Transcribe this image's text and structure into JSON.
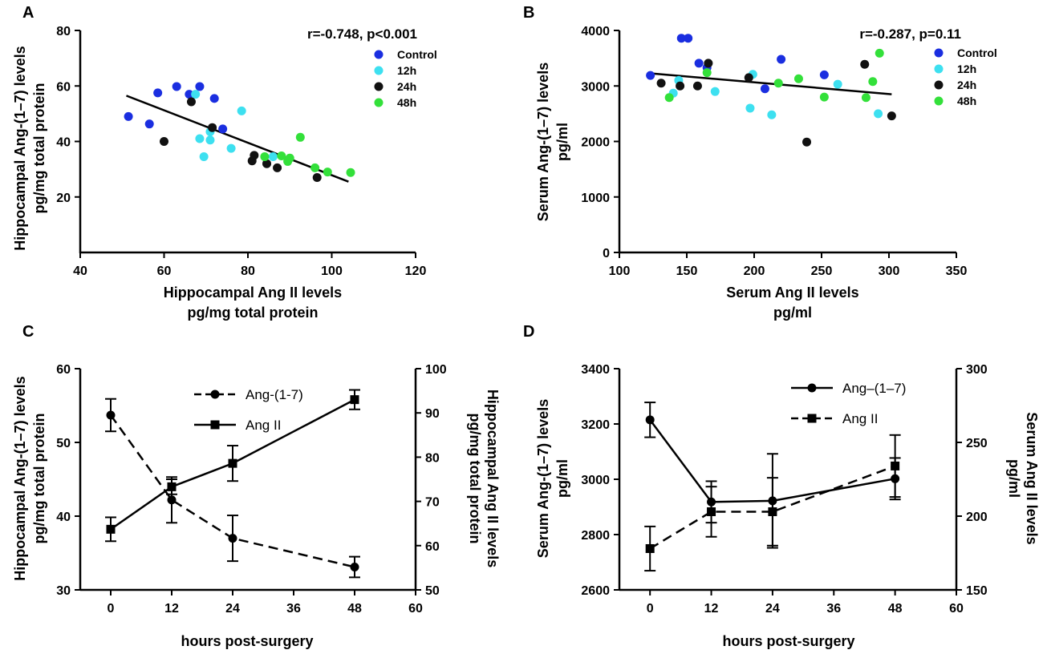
{
  "chart_data": [
    {
      "panel": "A",
      "type": "scatter",
      "xlabel": "Hippocampal Ang II levels",
      "xlabel2": "pg/mg total protein",
      "ylabel": "Hippocampal Ang-(1–7) levels",
      "ylabel2": "pg/mg total protein",
      "xlim": [
        40,
        120
      ],
      "xticks": [
        40,
        60,
        80,
        100,
        120
      ],
      "ylim": [
        0,
        80
      ],
      "yticks": [
        20,
        40,
        60,
        80
      ],
      "annotation": "r=-0.748, p<0.001",
      "fit": [
        [
          51,
          56.5
        ],
        [
          104,
          25.5
        ]
      ],
      "series": [
        {
          "name": "Control",
          "color": "#1a2ee0",
          "points": [
            [
              51.5,
              49
            ],
            [
              56.5,
              46.3
            ],
            [
              58.5,
              57.5
            ],
            [
              63,
              59.8
            ],
            [
              66,
              57
            ],
            [
              68.5,
              59.8
            ],
            [
              72,
              55.5
            ],
            [
              74,
              44.5
            ]
          ]
        },
        {
          "name": "12h",
          "color": "#3de0f0",
          "points": [
            [
              67.5,
              57
            ],
            [
              68.5,
              41
            ],
            [
              69.5,
              34.5
            ],
            [
              71,
              40.5
            ],
            [
              71,
              43.5
            ],
            [
              76,
              37.5
            ],
            [
              78.5,
              51
            ],
            [
              86,
              34.5
            ]
          ]
        },
        {
          "name": "24h",
          "color": "#111111",
          "points": [
            [
              60,
              40
            ],
            [
              66.5,
              54.3
            ],
            [
              71.5,
              45
            ],
            [
              81,
              33
            ],
            [
              81.5,
              35
            ],
            [
              84.5,
              32
            ],
            [
              87,
              30.5
            ],
            [
              96.5,
              27
            ]
          ]
        },
        {
          "name": "48h",
          "color": "#33e03a",
          "points": [
            [
              84,
              34.5
            ],
            [
              88,
              34.8
            ],
            [
              89.5,
              32.8
            ],
            [
              90,
              34
            ],
            [
              92.5,
              41.5
            ],
            [
              96,
              30.5
            ],
            [
              99,
              29
            ],
            [
              104.5,
              28.8
            ]
          ]
        }
      ]
    },
    {
      "panel": "B",
      "type": "scatter",
      "xlabel": "Serum Ang II levels",
      "xlabel2": "pg/ml",
      "ylabel": "Serum Ang-(1–7) levels",
      "ylabel2": "pg/ml",
      "xlim": [
        100,
        350
      ],
      "xticks": [
        100,
        150,
        200,
        250,
        300,
        350
      ],
      "ylim": [
        0,
        4000
      ],
      "yticks": [
        0,
        1000,
        2000,
        3000,
        4000
      ],
      "annotation": "r=-0.287, p=0.11",
      "fit": [
        [
          122,
          3230
        ],
        [
          302,
          2850
        ]
      ],
      "series": [
        {
          "name": "Control",
          "color": "#1a2ee0",
          "points": [
            [
              123,
              3190
            ],
            [
              146,
              3860
            ],
            [
              151,
              3860
            ],
            [
              159,
              3410
            ],
            [
              165,
              3330
            ],
            [
              208,
              2950
            ],
            [
              220,
              3480
            ],
            [
              252,
              3200
            ]
          ]
        },
        {
          "name": "12h",
          "color": "#3de0f0",
          "points": [
            [
              140,
              2870
            ],
            [
              144,
              3100
            ],
            [
              171,
              2900
            ],
            [
              197,
              2600
            ],
            [
              199,
              3210
            ],
            [
              213,
              2480
            ],
            [
              262,
              3030
            ],
            [
              292,
              2500
            ]
          ]
        },
        {
          "name": "24h",
          "color": "#111111",
          "points": [
            [
              131,
              3050
            ],
            [
              145,
              3000
            ],
            [
              158,
              3000
            ],
            [
              166,
              3410
            ],
            [
              196,
              3150
            ],
            [
              239,
              1990
            ],
            [
              282,
              3390
            ],
            [
              302,
              2460
            ]
          ]
        },
        {
          "name": "48h",
          "color": "#33e03a",
          "points": [
            [
              137,
              2790
            ],
            [
              165,
              3240
            ],
            [
              218,
              3050
            ],
            [
              233,
              3130
            ],
            [
              252,
              2800
            ],
            [
              283,
              2790
            ],
            [
              288,
              3080
            ],
            [
              293,
              3590
            ]
          ]
        }
      ]
    },
    {
      "panel": "C",
      "type": "line",
      "xlabel": "hours post-surgery",
      "ylabel": "Hippocampal Ang-(1–7) levels",
      "ylabel2": "pg/mg total protein",
      "y2label": "Hippocampal Ang II levels",
      "y2label2": "pg/mg total protein",
      "xlim": [
        -6,
        60
      ],
      "xticks": [
        0,
        12,
        24,
        36,
        48,
        60
      ],
      "ylim": [
        30,
        60
      ],
      "yticks": [
        30,
        40,
        50,
        60
      ],
      "y2lim": [
        50,
        100
      ],
      "y2ticks": [
        50,
        60,
        70,
        80,
        90,
        100
      ],
      "series": [
        {
          "name": "Ang-(1-7)",
          "axis": "left",
          "marker": "circle",
          "dash": true,
          "x": [
            0,
            12,
            24,
            48
          ],
          "values": [
            53.7,
            42.2,
            37.0,
            33.1
          ],
          "err": [
            2.2,
            3.1,
            3.1,
            1.4
          ]
        },
        {
          "name": "Ang II",
          "axis": "right",
          "marker": "square",
          "dash": false,
          "x": [
            0,
            12,
            24,
            48
          ],
          "values": [
            63.7,
            73.3,
            78.6,
            93.0
          ],
          "err": [
            2.7,
            1.7,
            4.0,
            2.2
          ]
        }
      ]
    },
    {
      "panel": "D",
      "type": "line",
      "xlabel": "hours post-surgery",
      "ylabel": "Serum Ang-(1–7) levels",
      "ylabel2": "pg/ml",
      "y2label": "Serum Ang II levels",
      "y2label2": "pg/ml",
      "xlim": [
        -6,
        60
      ],
      "xticks": [
        0,
        12,
        24,
        36,
        48,
        60
      ],
      "ylim": [
        2600,
        3400
      ],
      "yticks": [
        2600,
        2800,
        3000,
        3200,
        3400
      ],
      "y2lim": [
        150,
        300
      ],
      "y2ticks": [
        150,
        200,
        250,
        300
      ],
      "series": [
        {
          "name": "Ang–(1–7)",
          "axis": "left",
          "marker": "circle",
          "dash": false,
          "x": [
            0,
            12,
            24,
            48
          ],
          "values": [
            3215,
            2918,
            2922,
            3002
          ],
          "err": [
            63,
            75,
            170,
            75
          ]
        },
        {
          "name": "Ang II",
          "axis": "right",
          "marker": "square",
          "dash": true,
          "x": [
            0,
            12,
            24,
            48
          ],
          "values": [
            178,
            203,
            203,
            234
          ],
          "err": [
            15,
            17,
            23,
            21
          ]
        }
      ]
    }
  ]
}
